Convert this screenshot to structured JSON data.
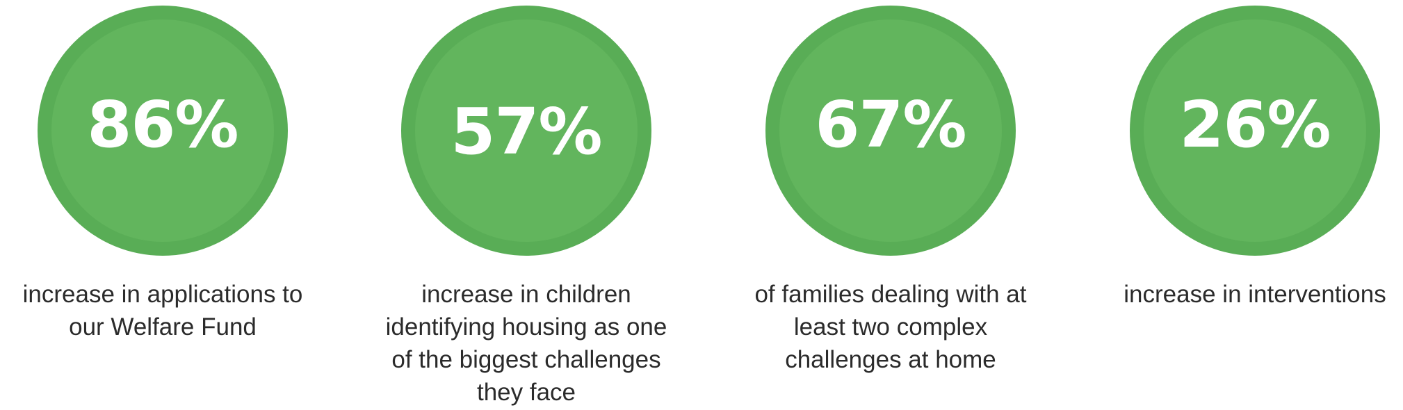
{
  "accent_color": "#62b55d",
  "stats": [
    {
      "value": "86%",
      "caption": "increase in applications to\nour Welfare Fund"
    },
    {
      "value": "57%",
      "caption": "increase in children\nidentifying housing as one\nof the biggest challenges\nthey face"
    },
    {
      "value": "67%",
      "caption": "of families dealing with at\nleast two complex\nchallenges at home"
    },
    {
      "value": "26%",
      "caption": "increase in interventions"
    }
  ]
}
